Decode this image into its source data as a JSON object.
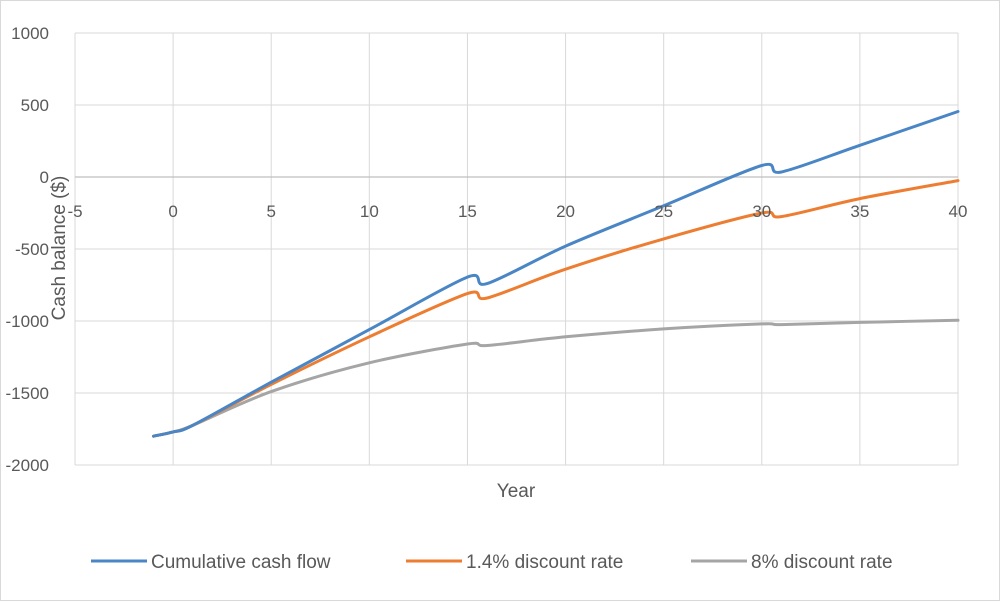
{
  "chart_data": {
    "type": "line",
    "title": "",
    "xlabel": "Year",
    "ylabel": "Cash balance ($)",
    "xlim": [
      -5,
      40
    ],
    "ylim": [
      -2000,
      1000
    ],
    "x_ticks": [
      -5,
      0,
      5,
      10,
      15,
      20,
      25,
      30,
      35,
      40
    ],
    "y_ticks": [
      1000,
      500,
      0,
      -500,
      -1000,
      -1500,
      -2000
    ],
    "x_tick_labels": [
      "-5",
      "0",
      "5",
      "10",
      "15",
      "20",
      "25",
      "30",
      "35",
      "40"
    ],
    "y_tick_labels": [
      "1000",
      "500",
      "0",
      "-500",
      "-1000",
      "-1500",
      "-2000"
    ],
    "grid": true,
    "legend_position": "bottom",
    "series": [
      {
        "name": "Cumulative cash flow",
        "color": "#4a86c5",
        "x": [
          -1,
          0,
          1,
          5,
          10,
          15,
          16,
          20,
          25,
          30,
          31,
          35,
          40
        ],
        "y": [
          -1800,
          -1770,
          -1725,
          -1425,
          -1060,
          -695,
          -740,
          -480,
          -200,
          80,
          35,
          220,
          455
        ]
      },
      {
        "name": "1.4% discount rate",
        "color": "#ed7d31",
        "x": [
          -1,
          0,
          1,
          5,
          10,
          15,
          16,
          20,
          25,
          30,
          31,
          35,
          40
        ],
        "y": [
          -1800,
          -1770,
          -1725,
          -1440,
          -1110,
          -810,
          -840,
          -640,
          -430,
          -250,
          -275,
          -150,
          -25
        ]
      },
      {
        "name": "8% discount rate",
        "color": "#a5a5a5",
        "x": [
          -1,
          0,
          1,
          5,
          10,
          15,
          16,
          20,
          25,
          30,
          31,
          35,
          40
        ],
        "y": [
          -1800,
          -1770,
          -1725,
          -1490,
          -1290,
          -1160,
          -1170,
          -1110,
          -1055,
          -1020,
          -1025,
          -1010,
          -995
        ]
      }
    ]
  }
}
